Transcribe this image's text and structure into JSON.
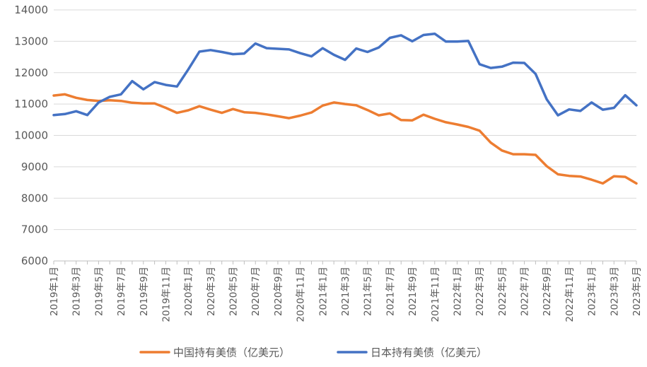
{
  "chart_data": {
    "type": "line",
    "title": "",
    "xlabel": "",
    "ylabel": "",
    "ylim": [
      6000,
      14000
    ],
    "yticks": [
      6000,
      7000,
      8000,
      9000,
      10000,
      11000,
      12000,
      13000,
      14000
    ],
    "grid": true,
    "legend_position": "bottom",
    "x": [
      "2019年1月",
      "2019年2月",
      "2019年3月",
      "2019年4月",
      "2019年5月",
      "2019年6月",
      "2019年7月",
      "2019年8月",
      "2019年9月",
      "2019年10月",
      "2019年11月",
      "2019年12月",
      "2020年1月",
      "2020年2月",
      "2020年3月",
      "2020年4月",
      "2020年5月",
      "2020年6月",
      "2020年7月",
      "2020年8月",
      "2020年9月",
      "2020年10月",
      "2020年11月",
      "2020年12月",
      "2021年1月",
      "2021年2月",
      "2021年3月",
      "2021年4月",
      "2021年5月",
      "2021年6月",
      "2021年7月",
      "2021年8月",
      "2021年9月",
      "2021年10月",
      "2021年11月",
      "2021年12月",
      "2022年1月",
      "2022年2月",
      "2022年3月",
      "2022年4月",
      "2022年5月",
      "2022年6月",
      "2022年7月",
      "2022年8月",
      "2022年9月",
      "2022年10月",
      "2022年11月",
      "2022年12月",
      "2023年1月",
      "2023年2月",
      "2023年3月",
      "2023年4月",
      "2023年5月"
    ],
    "x_tick_labels": [
      "2019年1月",
      "2019年3月",
      "2019年5月",
      "2019年7月",
      "2019年9月",
      "2019年11月",
      "2020年1月",
      "2020年3月",
      "2020年5月",
      "2020年7月",
      "2020年9月",
      "2020年11月",
      "2021年1月",
      "2021年3月",
      "2021年5月",
      "2021年7月",
      "2021年9月",
      "2021年11月",
      "2022年1月",
      "2022年3月",
      "2022年5月",
      "2022年7月",
      "2022年9月",
      "2022年11月",
      "2023年1月",
      "2023年3月",
      "2023年5月"
    ],
    "series": [
      {
        "name": "中国持有美债（亿美元）",
        "color": "#ED7D31",
        "values": [
          11270,
          11310,
          11200,
          11130,
          11100,
          11120,
          11100,
          11040,
          11020,
          11020,
          10880,
          10720,
          10800,
          10930,
          10820,
          10720,
          10840,
          10740,
          10720,
          10670,
          10610,
          10550,
          10630,
          10730,
          10950,
          11050,
          11000,
          10960,
          10810,
          10640,
          10700,
          10490,
          10480,
          10660,
          10530,
          10420,
          10350,
          10270,
          10150,
          9770,
          9520,
          9400,
          9400,
          9380,
          9020,
          8760,
          8710,
          8690,
          8590,
          8470,
          8700,
          8680,
          8470
        ]
      },
      {
        "name": "日本持有美债（亿美元）",
        "color": "#4472C4",
        "values": [
          10650,
          10680,
          10770,
          10650,
          11050,
          11230,
          11310,
          11730,
          11470,
          11700,
          11610,
          11560,
          12100,
          12670,
          12720,
          12660,
          12590,
          12610,
          12930,
          12780,
          12760,
          12740,
          12620,
          12520,
          12780,
          12570,
          12410,
          12770,
          12660,
          12800,
          13110,
          13190,
          13000,
          13200,
          13240,
          12990,
          12990,
          13010,
          12270,
          12150,
          12190,
          12320,
          12310,
          11960,
          11150,
          10640,
          10830,
          10780,
          11050,
          10820,
          10880,
          11280,
          10960
        ]
      }
    ]
  }
}
